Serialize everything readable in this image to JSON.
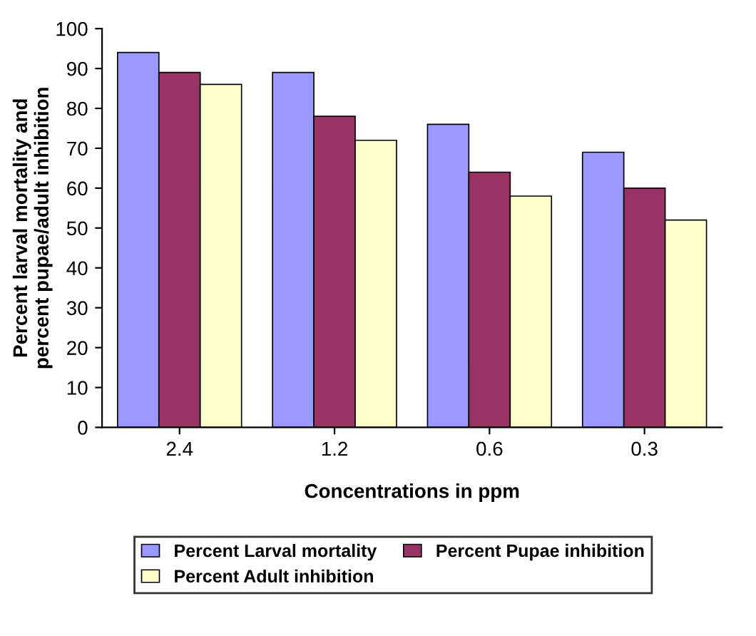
{
  "chart_data": {
    "type": "bar",
    "xlabel": "Concentrations in ppm",
    "ylabel": "Percent larval mortality and percent pupae/adult inhibition",
    "categories": [
      "2.4",
      "1.2",
      "0.6",
      "0.3"
    ],
    "series": [
      {
        "name": "Percent Larval mortality",
        "color": "#9999ff",
        "values": [
          94,
          89,
          76,
          69
        ]
      },
      {
        "name": "Percent Pupae inhibition",
        "color": "#993366",
        "values": [
          89,
          78,
          64,
          60
        ]
      },
      {
        "name": "Percent Adult inhibition",
        "color": "#ffffcc",
        "values": [
          86,
          72,
          58,
          52
        ]
      }
    ],
    "ylim": [
      0,
      100
    ],
    "yticks": [
      0,
      10,
      20,
      30,
      40,
      50,
      60,
      70,
      80,
      90,
      100
    ],
    "grid": false,
    "legend": "bottom"
  }
}
